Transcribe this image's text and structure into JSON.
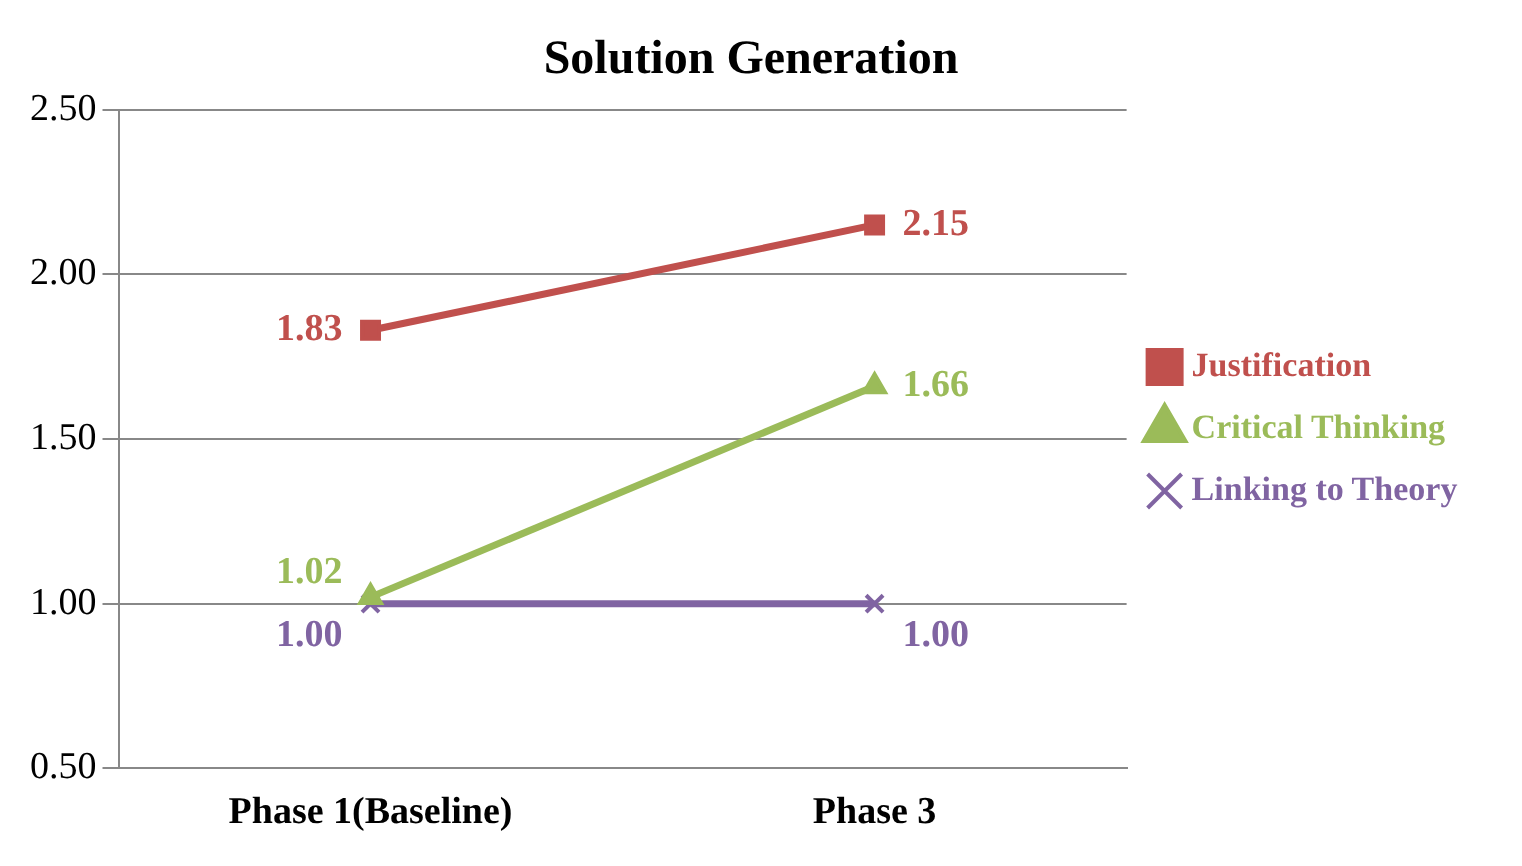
{
  "chart_data": {
    "type": "line",
    "title": "Solution Generation",
    "categories": [
      "Phase 1(Baseline)",
      "Phase 3"
    ],
    "series": [
      {
        "name": "Justification",
        "color": "#c0504d",
        "values": [
          1.83,
          2.15
        ],
        "marker": "square",
        "value_labels": [
          "1.83",
          "2.15"
        ]
      },
      {
        "name": "Critical Thinking",
        "color": "#9bbb59",
        "values": [
          1.02,
          1.66
        ],
        "marker": "triangle",
        "value_labels": [
          "1.02",
          "1.66"
        ]
      },
      {
        "name": "Linking to Theory",
        "color": "#8064a2",
        "values": [
          1.0,
          1.0
        ],
        "marker": "cross",
        "value_labels": [
          "1.00",
          "1.00"
        ]
      }
    ],
    "ylim": [
      0.5,
      2.5
    ],
    "yticks": [
      {
        "value": 0.5,
        "label": "0.50"
      },
      {
        "value": 1.0,
        "label": "1.00"
      },
      {
        "value": 1.5,
        "label": "1.50"
      },
      {
        "value": 2.0,
        "label": "2.00"
      },
      {
        "value": 2.5,
        "label": "2.50"
      }
    ],
    "grid": "y",
    "legend": "right"
  }
}
